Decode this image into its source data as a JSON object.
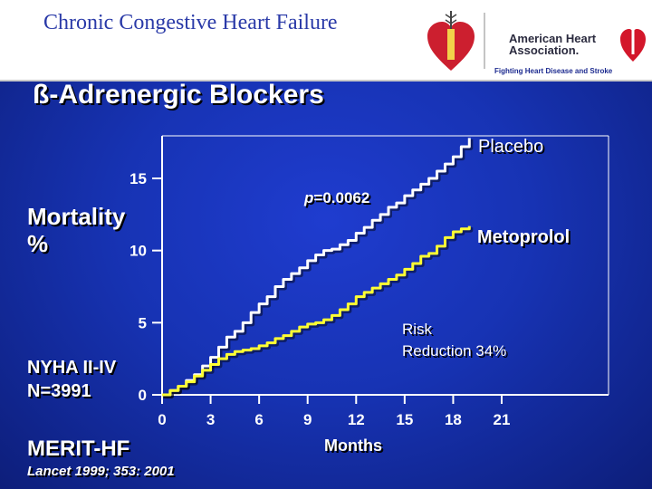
{
  "header": {
    "title": "Chronic Congestive Heart Failure",
    "org_line1": "American Heart",
    "org_line2": "Association.",
    "tagline": "Fighting Heart Disease and Stroke"
  },
  "slide_title": "ß-Adrenergic Blockers",
  "labels": {
    "ylabel_line1": "Mortality",
    "ylabel_line2": "%",
    "nyha": "NYHA II-IV",
    "n": "N=3991",
    "trial": "MERIT-HF",
    "citation": "Lancet 1999; 353: 2001",
    "p_prefix": "p",
    "p_value": "=0.0062",
    "risk_line1": "Risk",
    "risk_line2": "Reduction 34%"
  },
  "colors": {
    "placebo": "#ffffff",
    "metoprolol": "#ffff33",
    "background": "#1a36bf",
    "axis": "#ffffff"
  },
  "chart_data": {
    "type": "line",
    "xlabel": "Months",
    "ylabel": "Mortality %",
    "xlim": [
      0,
      21
    ],
    "ylim": [
      0,
      15
    ],
    "x_ticks": [
      0,
      3,
      6,
      9,
      12,
      15,
      18,
      21
    ],
    "y_ticks": [
      0,
      5,
      10,
      15
    ],
    "grid": false,
    "series": [
      {
        "name": "Placebo",
        "x": [
          0,
          0.5,
          1,
          1.5,
          2,
          2.5,
          3,
          3.5,
          4,
          4.5,
          5,
          5.5,
          6,
          6.5,
          7,
          7.5,
          8,
          8.5,
          9,
          9.5,
          10,
          10.5,
          11,
          11.5,
          12,
          12.5,
          13,
          13.5,
          14,
          14.5,
          15,
          15.5,
          16,
          16.5,
          17,
          17.5,
          18,
          18.5,
          19
        ],
        "y": [
          0,
          0.3,
          0.6,
          1.0,
          1.4,
          2.0,
          2.6,
          3.3,
          4.0,
          4.4,
          5.0,
          5.7,
          6.3,
          6.8,
          7.5,
          8.0,
          8.4,
          8.8,
          9.3,
          9.7,
          10.0,
          10.1,
          10.4,
          10.7,
          11.2,
          11.6,
          12.1,
          12.5,
          13.0,
          13.3,
          13.8,
          14.2,
          14.6,
          15.0,
          15.5,
          16.0,
          16.5,
          17.2,
          17.8
        ]
      },
      {
        "name": "Metoprolol",
        "x": [
          0,
          0.5,
          1,
          1.5,
          2,
          2.5,
          3,
          3.5,
          4,
          4.5,
          5,
          5.5,
          6,
          6.5,
          7,
          7.5,
          8,
          8.5,
          9,
          9.5,
          10,
          10.5,
          11,
          11.5,
          12,
          12.5,
          13,
          13.5,
          14,
          14.5,
          15,
          15.5,
          16,
          16.5,
          17,
          17.5,
          18,
          18.5,
          19
        ],
        "y": [
          0,
          0.3,
          0.6,
          0.9,
          1.3,
          1.7,
          2.1,
          2.5,
          2.8,
          3.0,
          3.1,
          3.2,
          3.4,
          3.6,
          3.9,
          4.1,
          4.4,
          4.7,
          4.9,
          5.0,
          5.2,
          5.5,
          5.9,
          6.3,
          6.8,
          7.1,
          7.4,
          7.7,
          8.0,
          8.3,
          8.7,
          9.1,
          9.6,
          9.8,
          10.3,
          10.9,
          11.3,
          11.5,
          11.7
        ]
      }
    ]
  }
}
